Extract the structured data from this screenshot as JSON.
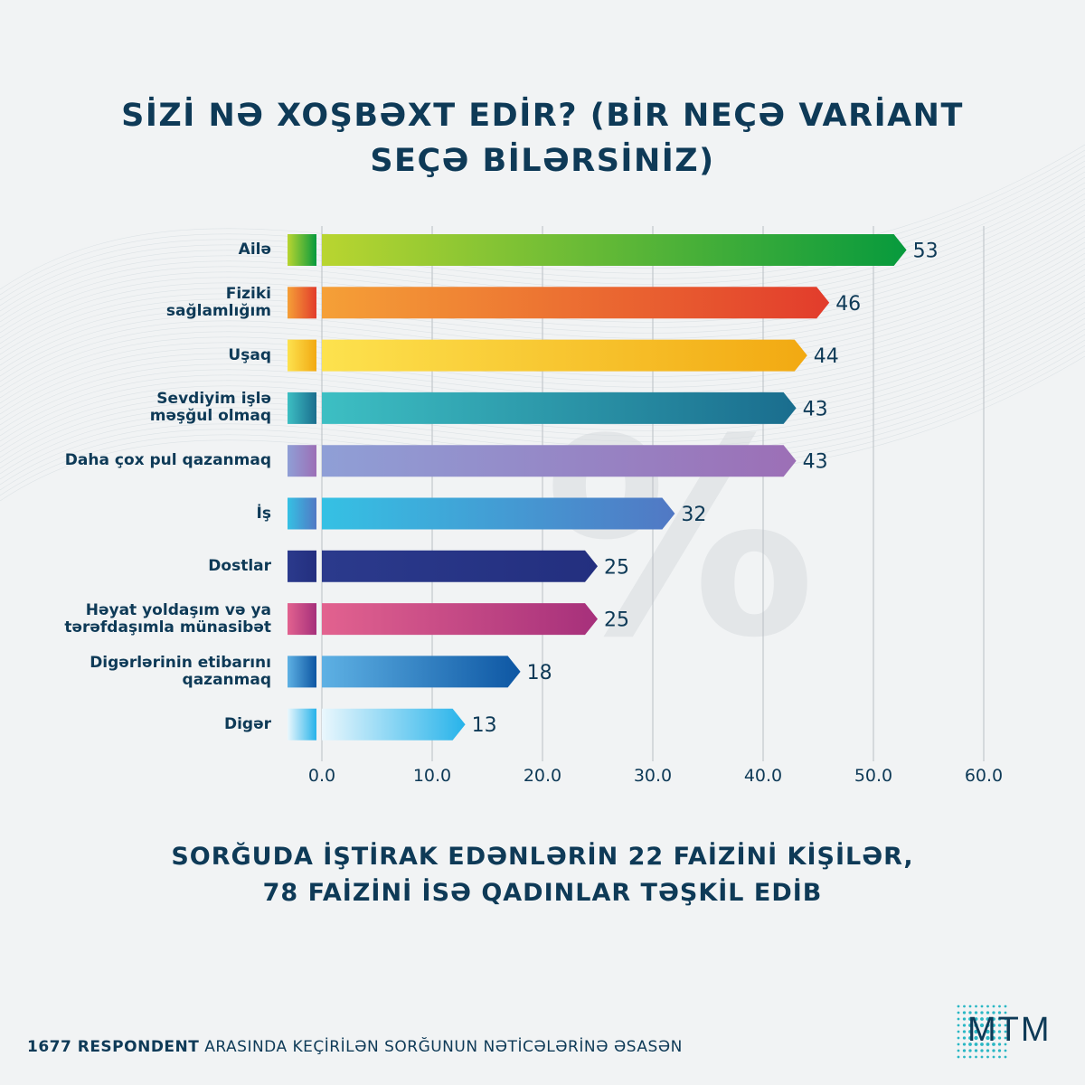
{
  "title": {
    "line1": "SİZİ NƏ XOŞBƏXT EDİR? (BİR NEÇƏ VARİANT",
    "line2": "SEÇƏ BİLƏRSİNİZ)"
  },
  "subtitle": {
    "line1": "SORĞUDA İŞTİRAK EDƏNLƏRİN 22 FAİZİNİ KİŞİLƏR,",
    "line2": "78 FAİZİNİ İSƏ QADINLAR TƏŞKİL EDİB"
  },
  "footer": {
    "bold": "1677 RESPONDENT",
    "rest": "ARASINDA KEÇİRİLƏN SORĞUNUN NƏTİCƏLƏRİNƏ ƏSASƏN"
  },
  "logo": {
    "text": "MTM",
    "icon": "mtm-dot-burst-logo"
  },
  "watermark": "%",
  "chart_data": {
    "type": "bar",
    "orientation": "horizontal",
    "title": "SİZİ NƏ XOŞBƏXT EDİR? (BİR NEÇƏ VARİANT SEÇƏ BİLƏRSİNİZ)",
    "categories": [
      [
        "Ailə"
      ],
      [
        "Fiziki",
        "sağlamlığım"
      ],
      [
        "Uşaq"
      ],
      [
        "Sevdiyim işlə",
        "məşğul olmaq"
      ],
      [
        "Daha çox pul qazanmaq"
      ],
      [
        "İş"
      ],
      [
        "Dostlar"
      ],
      [
        "Həyat yoldaşım və ya",
        "tərəfdaşımla münasibət"
      ],
      [
        "Digərlərinin etibarını",
        "qazanmaq"
      ],
      [
        "Digər"
      ]
    ],
    "values": [
      53,
      46,
      44,
      43,
      43,
      32,
      25,
      25,
      18,
      13
    ],
    "xlim": [
      0,
      60
    ],
    "ticks": [
      "0.0",
      "10.0",
      "20.0",
      "30.0",
      "40.0",
      "50.0",
      "60.0"
    ],
    "tick_values": [
      0,
      10,
      20,
      30,
      40,
      50,
      60
    ],
    "grid": true,
    "colors": [
      [
        "#b9d530",
        "#079a3d"
      ],
      [
        "#f5a037",
        "#e23c2c"
      ],
      [
        "#fde24e",
        "#f2a912"
      ],
      [
        "#3dbfc3",
        "#1a6d8e"
      ],
      [
        "#8f9fd6",
        "#9c6fb6"
      ],
      [
        "#35c1e4",
        "#5178c4"
      ],
      [
        "#2b3a8c",
        "#232f7f"
      ],
      [
        "#e2628f",
        "#a6307b"
      ],
      [
        "#5eb1e4",
        "#0d56a3"
      ],
      [
        "#eaf7fd",
        "#27b3ea"
      ]
    ]
  }
}
